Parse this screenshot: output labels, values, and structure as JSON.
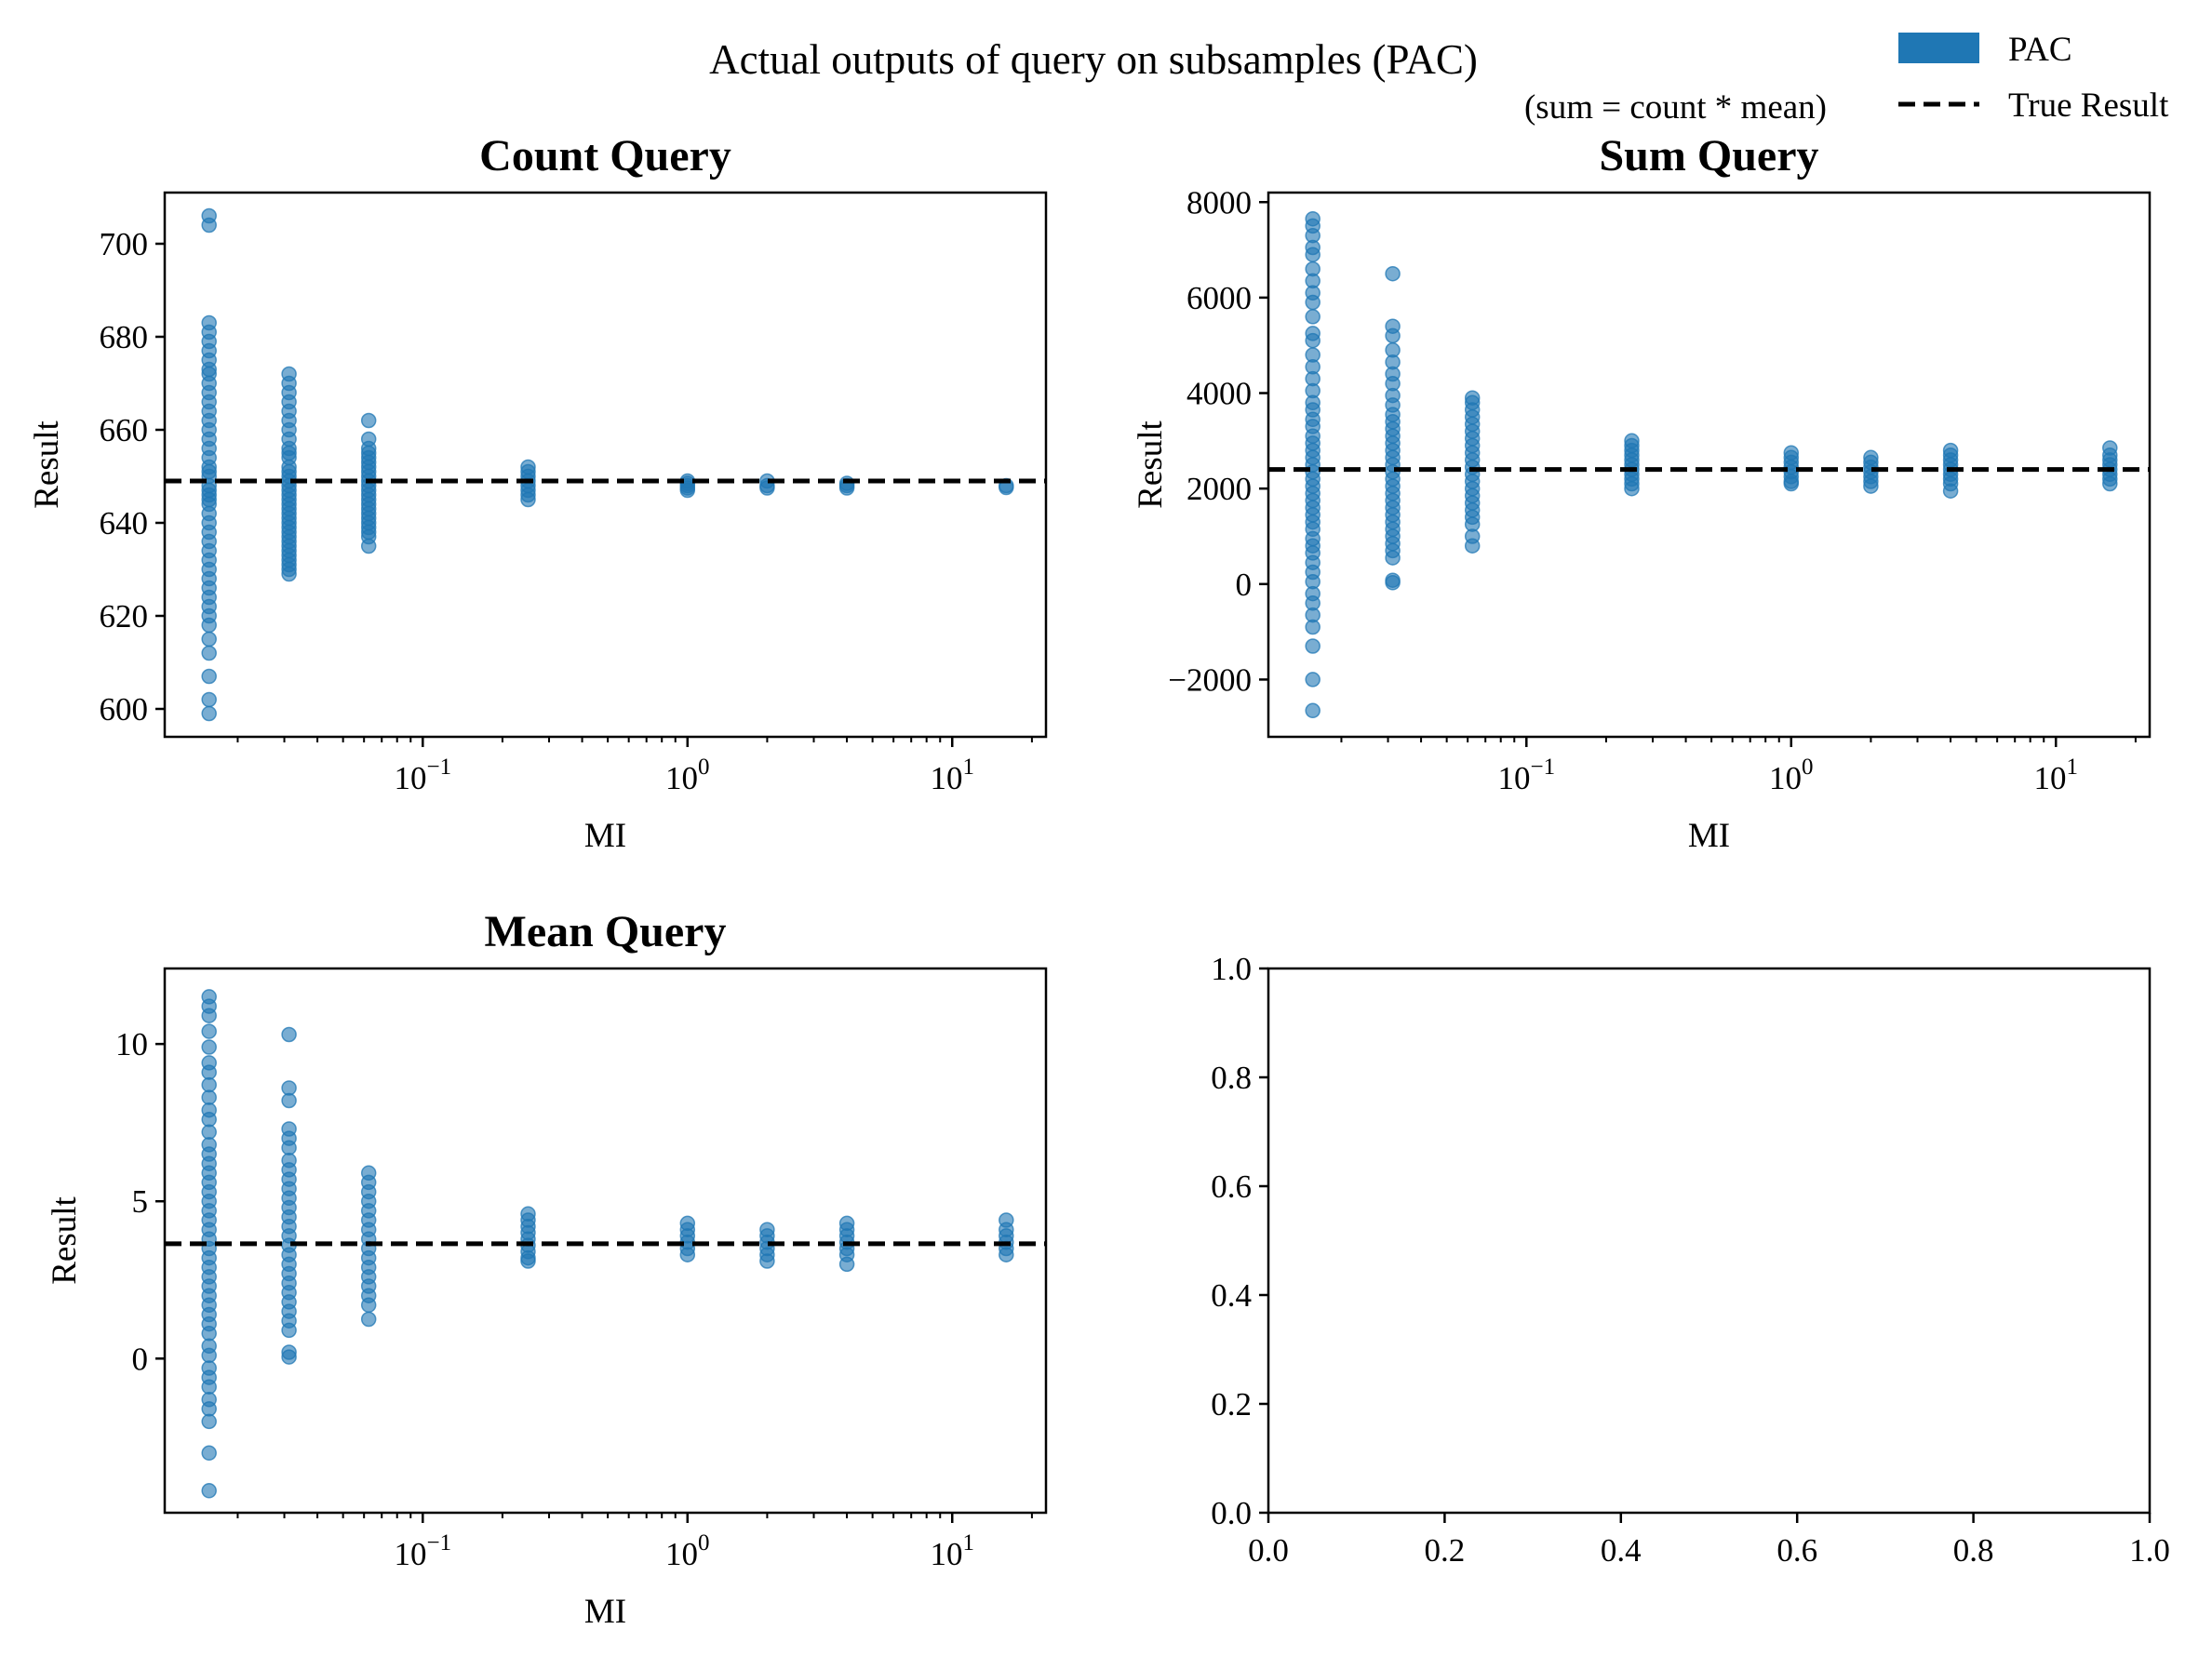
{
  "figure": {
    "suptitle": "Actual outputs of query on subsamples (PAC)",
    "subtitle": "(sum = count * mean)"
  },
  "legend": {
    "placement": "top-right",
    "items": [
      {
        "label": "PAC",
        "kind": "patch",
        "color": "#1f77b4"
      },
      {
        "label": "True Result",
        "kind": "dashed-line",
        "color": "#000000"
      }
    ]
  },
  "colors": {
    "points": "#1f77b4",
    "true_result": "#000000"
  },
  "chart_data": [
    {
      "type": "scatter",
      "title": "Count Query",
      "xlabel": "MI",
      "ylabel": "Result",
      "xscale": "log",
      "xticks": [
        0.1,
        1,
        10
      ],
      "xtick_labels": [
        {
          "base": "10",
          "exp": "−1"
        },
        {
          "base": "10",
          "exp": "0"
        },
        {
          "base": "10",
          "exp": "1"
        }
      ],
      "yticks": [
        600,
        620,
        640,
        660,
        680,
        700
      ],
      "ylim": [
        594,
        711
      ],
      "true_result": 649,
      "grid": false,
      "series": [
        {
          "x": 0.0156,
          "y": [
            706,
            704,
            683,
            681,
            679,
            677,
            675,
            673,
            672,
            670,
            668,
            666,
            664,
            662,
            660,
            658,
            656,
            654,
            652,
            651,
            650,
            648,
            647,
            646,
            645,
            644,
            642,
            640,
            638,
            636,
            634,
            632,
            630,
            628,
            626,
            624,
            622,
            620,
            618,
            615,
            612,
            607,
            602,
            599
          ]
        },
        {
          "x": 0.03125,
          "y": [
            672,
            670,
            668,
            666,
            664,
            662,
            660,
            658,
            656,
            655,
            654,
            652,
            651,
            650,
            649,
            648,
            647,
            646,
            645,
            644,
            643,
            642,
            641,
            640,
            639,
            638,
            637,
            636,
            635,
            634,
            633,
            632,
            631,
            630,
            629
          ]
        },
        {
          "x": 0.0625,
          "y": [
            662,
            658,
            656,
            655,
            654,
            653,
            652,
            651,
            650,
            649,
            648,
            647,
            646,
            645,
            644,
            643,
            642,
            641,
            640,
            639,
            638,
            637,
            635
          ]
        },
        {
          "x": 0.25,
          "y": [
            652,
            651,
            650,
            649,
            648,
            647,
            646,
            645
          ]
        },
        {
          "x": 1,
          "y": [
            649,
            648.5,
            648,
            647.5,
            647
          ]
        },
        {
          "x": 2,
          "y": [
            649,
            648,
            647.5
          ]
        },
        {
          "x": 4,
          "y": [
            648.5,
            648,
            647.5
          ]
        },
        {
          "x": 16,
          "y": [
            648,
            647.6
          ]
        }
      ]
    },
    {
      "type": "scatter",
      "title": "Sum Query",
      "xlabel": "MI",
      "ylabel": "Result",
      "xscale": "log",
      "xticks": [
        0.1,
        1,
        10
      ],
      "xtick_labels": [
        {
          "base": "10",
          "exp": "−1"
        },
        {
          "base": "10",
          "exp": "0"
        },
        {
          "base": "10",
          "exp": "1"
        }
      ],
      "yticks": [
        -2000,
        0,
        2000,
        4000,
        6000,
        8000
      ],
      "ytick_labels": [
        "−2000",
        "0",
        "2000",
        "4000",
        "6000",
        "8000"
      ],
      "ylim": [
        -3200,
        8200
      ],
      "true_result": 2400,
      "grid": false,
      "series": [
        {
          "x": 0.0156,
          "y": [
            7650,
            7500,
            7300,
            7050,
            6900,
            6600,
            6350,
            6100,
            5900,
            5600,
            5250,
            5100,
            4800,
            4550,
            4300,
            4050,
            3800,
            3650,
            3450,
            3300,
            3100,
            2950,
            2800,
            2650,
            2500,
            2350,
            2200,
            2050,
            1900,
            1750,
            1600,
            1450,
            1300,
            1150,
            950,
            800,
            650,
            450,
            250,
            50,
            -200,
            -400,
            -650,
            -900,
            -1300,
            -2000,
            -2650
          ]
        },
        {
          "x": 0.03125,
          "y": [
            6500,
            5400,
            5200,
            4900,
            4650,
            4400,
            4200,
            3950,
            3750,
            3550,
            3400,
            3250,
            3100,
            2950,
            2800,
            2650,
            2500,
            2350,
            2200,
            2050,
            1900,
            1750,
            1600,
            1450,
            1300,
            1150,
            1000,
            850,
            700,
            550,
            80,
            30
          ]
        },
        {
          "x": 0.0625,
          "y": [
            3900,
            3800,
            3650,
            3500,
            3350,
            3200,
            3050,
            2900,
            2750,
            2600,
            2450,
            2300,
            2150,
            2000,
            1850,
            1700,
            1550,
            1400,
            1250,
            1000,
            800
          ]
        },
        {
          "x": 0.25,
          "y": [
            3000,
            2900,
            2800,
            2700,
            2600,
            2500,
            2400,
            2300,
            2200,
            2100,
            2000
          ]
        },
        {
          "x": 1,
          "y": [
            2750,
            2650,
            2550,
            2450,
            2350,
            2250,
            2150,
            2100
          ]
        },
        {
          "x": 2,
          "y": [
            2650,
            2550,
            2450,
            2350,
            2250,
            2150,
            2050
          ]
        },
        {
          "x": 4,
          "y": [
            2800,
            2700,
            2600,
            2500,
            2400,
            2300,
            2200,
            2100,
            1950
          ]
        },
        {
          "x": 16,
          "y": [
            2850,
            2700,
            2600,
            2500,
            2400,
            2300,
            2200,
            2100
          ]
        }
      ]
    },
    {
      "type": "scatter",
      "title": "Mean Query",
      "xlabel": "MI",
      "ylabel": "Result",
      "xscale": "log",
      "xticks": [
        0.1,
        1,
        10
      ],
      "xtick_labels": [
        {
          "base": "10",
          "exp": "−1"
        },
        {
          "base": "10",
          "exp": "0"
        },
        {
          "base": "10",
          "exp": "1"
        }
      ],
      "yticks": [
        0,
        5,
        10
      ],
      "ylim": [
        -4.9,
        12.4
      ],
      "true_result": 3.65,
      "grid": false,
      "series": [
        {
          "x": 0.0156,
          "y": [
            11.5,
            11.2,
            10.9,
            10.4,
            9.9,
            9.4,
            9.1,
            8.7,
            8.3,
            7.9,
            7.6,
            7.2,
            6.8,
            6.5,
            6.2,
            5.9,
            5.6,
            5.3,
            5.0,
            4.7,
            4.4,
            4.1,
            3.8,
            3.5,
            3.2,
            2.9,
            2.6,
            2.3,
            2.0,
            1.7,
            1.4,
            1.1,
            0.8,
            0.4,
            0.1,
            -0.3,
            -0.6,
            -0.9,
            -1.3,
            -1.6,
            -2.0,
            -3.0,
            -4.2
          ]
        },
        {
          "x": 0.03125,
          "y": [
            10.3,
            8.6,
            8.2,
            7.3,
            7.0,
            6.7,
            6.3,
            6.0,
            5.7,
            5.4,
            5.1,
            4.8,
            4.5,
            4.2,
            3.9,
            3.6,
            3.3,
            3.0,
            2.7,
            2.4,
            2.1,
            1.8,
            1.5,
            1.2,
            0.9,
            0.2,
            0.05
          ]
        },
        {
          "x": 0.0625,
          "y": [
            5.9,
            5.6,
            5.3,
            5.0,
            4.7,
            4.4,
            4.1,
            3.8,
            3.5,
            3.2,
            2.9,
            2.6,
            2.3,
            2.0,
            1.7,
            1.25
          ]
        },
        {
          "x": 0.25,
          "y": [
            4.6,
            4.4,
            4.2,
            4.0,
            3.8,
            3.6,
            3.4,
            3.2,
            3.1
          ]
        },
        {
          "x": 1,
          "y": [
            4.3,
            4.1,
            3.9,
            3.7,
            3.5,
            3.3
          ]
        },
        {
          "x": 2,
          "y": [
            4.1,
            3.9,
            3.7,
            3.5,
            3.3,
            3.1
          ]
        },
        {
          "x": 4,
          "y": [
            4.3,
            4.1,
            3.9,
            3.7,
            3.5,
            3.3,
            3.0
          ]
        },
        {
          "x": 16,
          "y": [
            4.4,
            4.1,
            3.9,
            3.7,
            3.5,
            3.3
          ]
        }
      ]
    },
    {
      "type": "scatter",
      "title": "",
      "xlabel": "",
      "ylabel": "",
      "xscale": "linear",
      "xlim": [
        0,
        1
      ],
      "ylim": [
        0,
        1
      ],
      "xticks": [
        0.0,
        0.2,
        0.4,
        0.6,
        0.8,
        1.0
      ],
      "xtick_labels": [
        "0.0",
        "0.2",
        "0.4",
        "0.6",
        "0.8",
        "1.0"
      ],
      "yticks": [
        0.0,
        0.2,
        0.4,
        0.6,
        0.8,
        1.0
      ],
      "ytick_labels": [
        "0.0",
        "0.2",
        "0.4",
        "0.6",
        "0.8",
        "1.0"
      ],
      "grid": false,
      "series": []
    }
  ]
}
